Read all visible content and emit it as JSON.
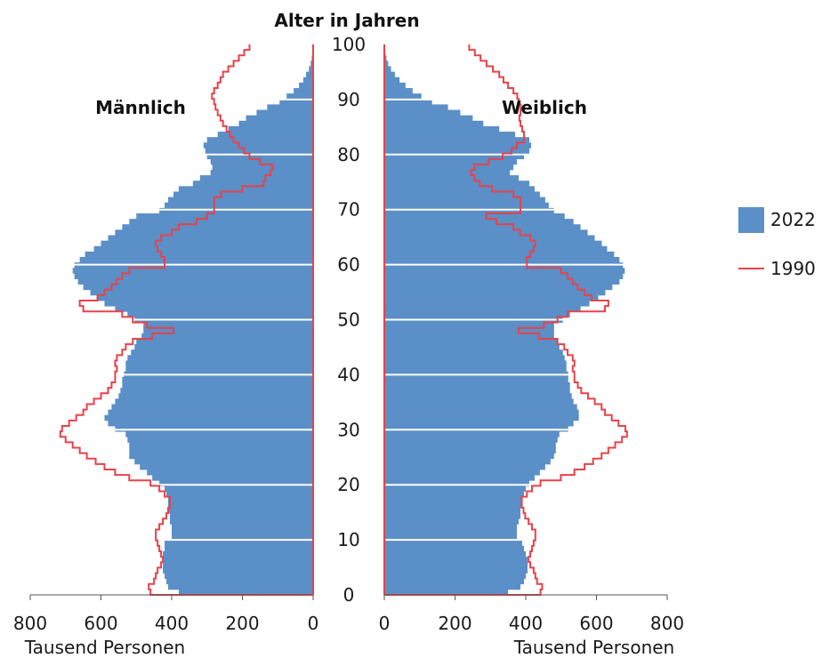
{
  "chart_data": {
    "type": "population-pyramid",
    "title": "Alter in Jahren",
    "left_panel_label": "Männlich",
    "right_panel_label": "Weiblich",
    "x_unit_label_left": "Tausend Personen",
    "x_unit_label_right": "Tausend Personen",
    "xlim": [
      0,
      800
    ],
    "x_ticks": [
      "800",
      "600",
      "400",
      "200",
      "0",
      "0",
      "200",
      "400",
      "600",
      "800"
    ],
    "ylim": [
      0,
      100
    ],
    "y_ticks": [
      0,
      10,
      20,
      30,
      40,
      50,
      60,
      70,
      80,
      90,
      100
    ],
    "colors": {
      "bars_2022": "#5b8fc7",
      "line_1990": "#e8424a",
      "gridline": "#ffffff"
    },
    "legend": [
      {
        "name": "2022",
        "style": "bar"
      },
      {
        "name": "1990",
        "style": "line"
      }
    ],
    "series": [
      {
        "name": "2022",
        "style": "bar",
        "ages": [
          0,
          1,
          2,
          3,
          4,
          5,
          6,
          7,
          8,
          9,
          10,
          11,
          12,
          13,
          14,
          15,
          16,
          17,
          18,
          19,
          20,
          21,
          22,
          23,
          24,
          25,
          26,
          27,
          28,
          29,
          30,
          31,
          32,
          33,
          34,
          35,
          36,
          37,
          38,
          39,
          40,
          41,
          42,
          43,
          44,
          45,
          46,
          47,
          48,
          49,
          50,
          51,
          52,
          53,
          54,
          55,
          56,
          57,
          58,
          59,
          60,
          61,
          62,
          63,
          64,
          65,
          66,
          67,
          68,
          69,
          70,
          71,
          72,
          73,
          74,
          75,
          76,
          77,
          78,
          79,
          80,
          81,
          82,
          83,
          84,
          85,
          86,
          87,
          88,
          89,
          90,
          91,
          92,
          93,
          94,
          95,
          96,
          97,
          98,
          99,
          100
        ],
        "male": [
          380,
          410,
          415,
          420,
          425,
          425,
          425,
          425,
          420,
          420,
          400,
          400,
          400,
          405,
          405,
          410,
          410,
          410,
          415,
          420,
          435,
          455,
          470,
          490,
          505,
          520,
          520,
          520,
          525,
          530,
          560,
          580,
          590,
          580,
          570,
          560,
          550,
          545,
          540,
          540,
          535,
          530,
          530,
          525,
          515,
          505,
          500,
          485,
          480,
          480,
          505,
          525,
          560,
          590,
          610,
          630,
          650,
          665,
          675,
          680,
          675,
          660,
          645,
          620,
          600,
          580,
          560,
          540,
          520,
          500,
          435,
          420,
          410,
          395,
          380,
          340,
          320,
          290,
          285,
          290,
          300,
          305,
          310,
          300,
          270,
          240,
          210,
          190,
          160,
          130,
          95,
          75,
          55,
          40,
          28,
          20,
          12,
          7,
          4,
          2,
          1
        ],
        "female": [
          350,
          385,
          395,
          400,
          405,
          405,
          405,
          400,
          395,
          390,
          375,
          375,
          375,
          380,
          385,
          385,
          390,
          390,
          395,
          400,
          410,
          425,
          440,
          455,
          470,
          480,
          485,
          485,
          490,
          495,
          520,
          535,
          550,
          550,
          545,
          535,
          530,
          525,
          525,
          520,
          520,
          515,
          515,
          510,
          505,
          495,
          490,
          480,
          480,
          480,
          505,
          525,
          555,
          580,
          605,
          625,
          645,
          665,
          675,
          680,
          675,
          665,
          650,
          630,
          615,
          595,
          575,
          555,
          535,
          510,
          480,
          465,
          455,
          440,
          425,
          410,
          380,
          355,
          365,
          375,
          395,
          410,
          415,
          410,
          370,
          325,
          280,
          250,
          215,
          180,
          135,
          105,
          80,
          60,
          43,
          30,
          19,
          11,
          6,
          3,
          1
        ]
      },
      {
        "name": "1990",
        "style": "line",
        "ages": [
          0,
          1,
          2,
          3,
          4,
          5,
          6,
          7,
          8,
          9,
          10,
          11,
          12,
          13,
          14,
          15,
          16,
          17,
          18,
          19,
          20,
          21,
          22,
          23,
          24,
          25,
          26,
          27,
          28,
          29,
          30,
          31,
          32,
          33,
          34,
          35,
          36,
          37,
          38,
          39,
          40,
          41,
          42,
          43,
          44,
          45,
          46,
          47,
          48,
          49,
          50,
          51,
          52,
          53,
          54,
          55,
          56,
          57,
          58,
          59,
          60,
          61,
          62,
          63,
          64,
          65,
          66,
          67,
          68,
          69,
          70,
          71,
          72,
          73,
          74,
          75,
          76,
          77,
          78,
          79,
          80,
          81,
          82,
          83,
          84,
          85,
          86,
          87,
          88,
          89,
          90,
          91,
          92,
          93,
          94,
          95,
          96,
          97,
          98,
          99,
          100
        ],
        "male": [
          460,
          465,
          450,
          445,
          440,
          430,
          425,
          430,
          435,
          440,
          445,
          445,
          435,
          425,
          415,
          410,
          405,
          405,
          420,
          435,
          460,
          520,
          560,
          590,
          615,
          640,
          660,
          680,
          700,
          715,
          710,
          690,
          670,
          650,
          640,
          620,
          600,
          580,
          570,
          560,
          560,
          555,
          560,
          555,
          540,
          530,
          510,
          455,
          395,
          470,
          510,
          540,
          650,
          660,
          610,
          590,
          570,
          555,
          540,
          520,
          420,
          420,
          430,
          440,
          445,
          430,
          400,
          380,
          330,
          300,
          280,
          280,
          280,
          260,
          200,
          140,
          135,
          120,
          115,
          150,
          180,
          195,
          210,
          225,
          235,
          245,
          255,
          262,
          270,
          276,
          280,
          286,
          280,
          270,
          262,
          255,
          240,
          225,
          210,
          195,
          180
        ]
      }
    ]
  }
}
